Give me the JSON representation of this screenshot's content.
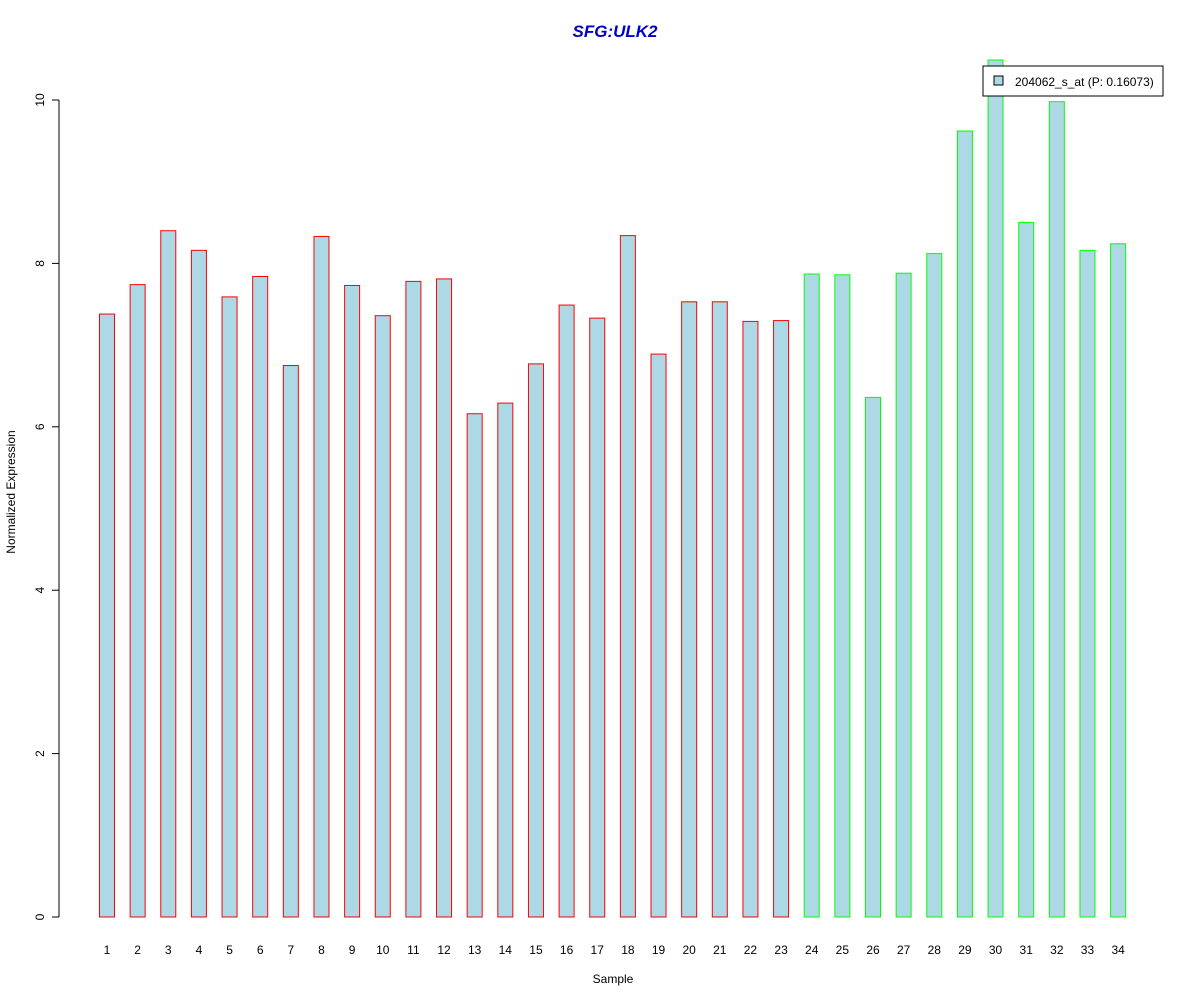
{
  "chart_data": {
    "type": "bar",
    "title": "SFG:ULK2",
    "xlabel": "Sample",
    "ylabel": "Normalized Expression",
    "ylim": [
      0,
      10
    ],
    "yticks": [
      "0",
      "2",
      "4",
      "6",
      "8",
      "10"
    ],
    "categories": [
      "1",
      "2",
      "3",
      "4",
      "5",
      "6",
      "7",
      "8",
      "9",
      "10",
      "11",
      "12",
      "13",
      "14",
      "15",
      "16",
      "17",
      "18",
      "19",
      "20",
      "21",
      "22",
      "23",
      "24",
      "25",
      "26",
      "27",
      "28",
      "29",
      "30",
      "31",
      "32",
      "33",
      "34"
    ],
    "values": [
      7.38,
      7.74,
      8.4,
      8.16,
      7.59,
      7.84,
      6.75,
      8.33,
      7.73,
      7.36,
      7.78,
      7.81,
      6.16,
      6.29,
      6.77,
      7.49,
      7.33,
      8.34,
      6.89,
      7.53,
      7.53,
      7.29,
      7.3,
      7.87,
      7.86,
      6.36,
      7.88,
      8.12,
      9.62,
      10.49,
      8.5,
      9.98,
      8.16,
      8.24
    ],
    "groups": [
      "red",
      "red",
      "red",
      "red",
      "red",
      "red",
      "red",
      "red",
      "red",
      "red",
      "red",
      "red",
      "red",
      "red",
      "red",
      "red",
      "red",
      "red",
      "red",
      "red",
      "red",
      "red",
      "red",
      "green",
      "green",
      "green",
      "green",
      "green",
      "green",
      "green",
      "green",
      "green",
      "green",
      "green"
    ],
    "legend": {
      "label": "204062_s_at (P: 0.16073)",
      "position": "top-right"
    },
    "colors": {
      "fill": "#add8e6",
      "red": "#ff0000",
      "green": "#00ff00",
      "title": "#0000cc"
    },
    "grid": false
  }
}
